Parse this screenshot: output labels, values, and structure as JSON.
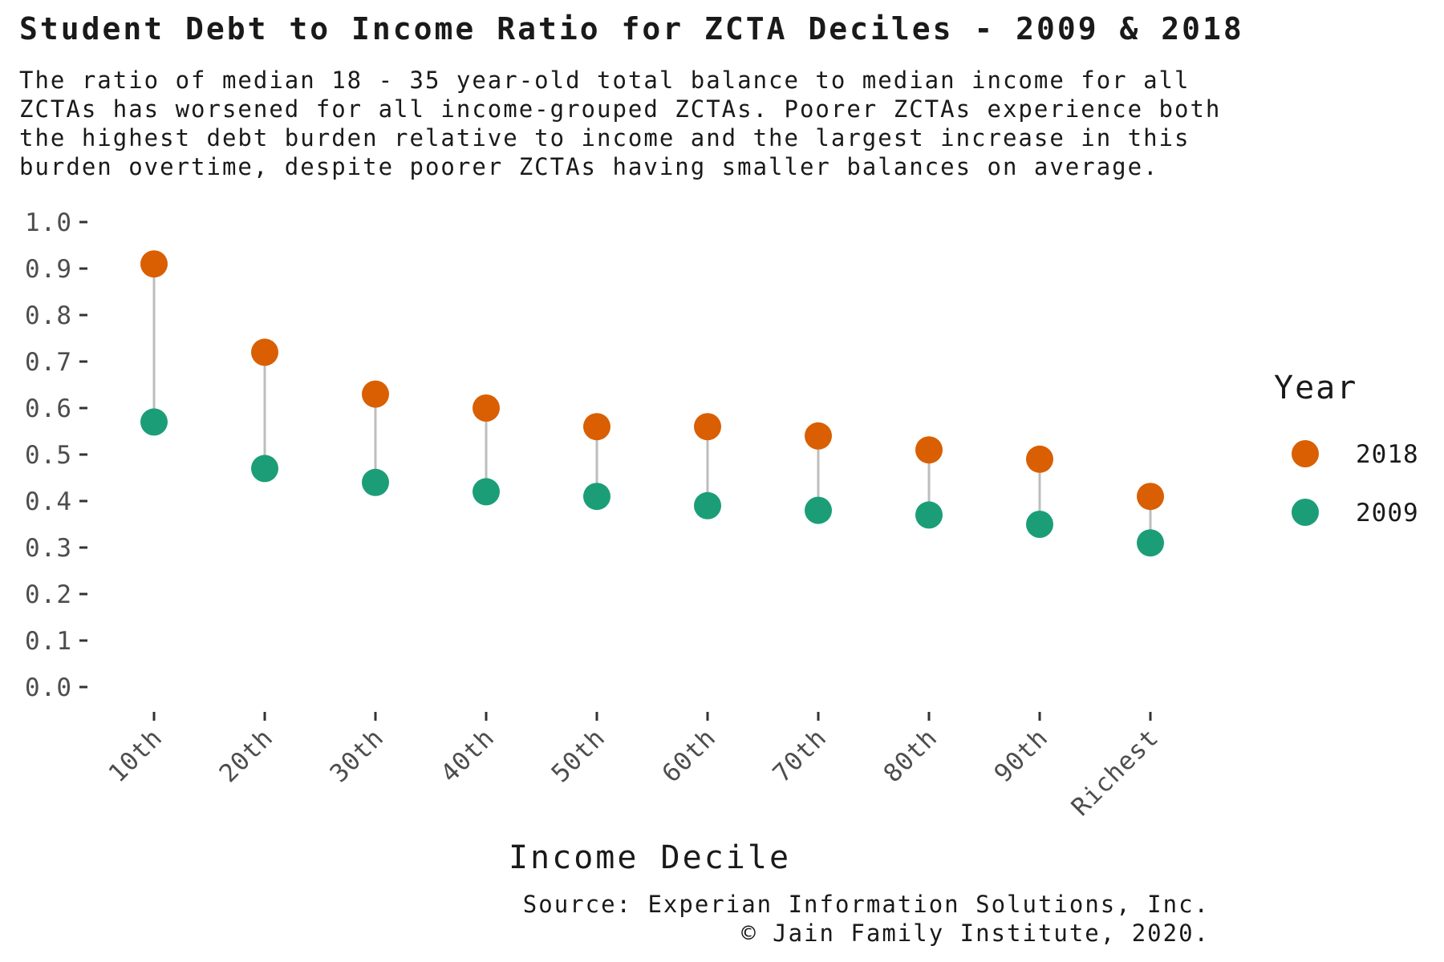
{
  "chart_data": {
    "type": "dumbbell",
    "title": "Student Debt to Income Ratio for ZCTA Deciles - 2009 & 2018",
    "subtitle": [
      "The ratio of median 18 - 35 year-old total balance to median income for all",
      "ZCTAs has worsened for all income-grouped ZCTAs. Poorer ZCTAs experience both",
      "the highest debt burden relative to income and the largest increase in this",
      "burden overtime, despite poorer ZCTAs having smaller balances on average."
    ],
    "xlabel": "Income Decile",
    "ylabel": "",
    "categories": [
      "10th",
      "20th",
      "30th",
      "40th",
      "50th",
      "60th",
      "70th",
      "80th",
      "90th",
      "Richest"
    ],
    "series": [
      {
        "name": "2018",
        "color": "#d95f02",
        "values": [
          0.91,
          0.72,
          0.63,
          0.6,
          0.56,
          0.56,
          0.54,
          0.51,
          0.49,
          0.41
        ]
      },
      {
        "name": "2009",
        "color": "#1b9e77",
        "values": [
          0.57,
          0.47,
          0.44,
          0.42,
          0.41,
          0.39,
          0.38,
          0.37,
          0.35,
          0.31
        ]
      }
    ],
    "connector_color": "#bdbdbd",
    "ylim": [
      0.0,
      1.0
    ],
    "yticks": [
      "0.0",
      "0.1",
      "0.2",
      "0.3",
      "0.4",
      "0.5",
      "0.6",
      "0.7",
      "0.8",
      "0.9",
      "1.0"
    ],
    "grid": false,
    "legend": {
      "title": "Year",
      "position": "right"
    },
    "source": [
      "Source: Experian Information Solutions, Inc.",
      "© Jain Family Institute, 2020."
    ]
  }
}
